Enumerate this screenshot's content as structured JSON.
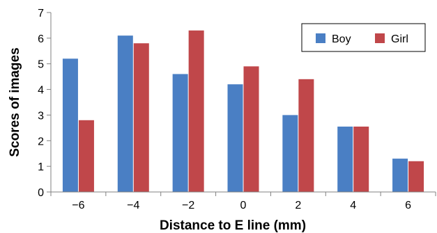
{
  "chart_data": {
    "type": "bar",
    "categories": [
      "−6",
      "−4",
      "−2",
      "0",
      "2",
      "4",
      "6"
    ],
    "series": [
      {
        "name": "Boy",
        "values": [
          5.2,
          6.1,
          4.6,
          4.2,
          3.0,
          2.55,
          1.3
        ],
        "color": "#4a7fc4"
      },
      {
        "name": "Girl",
        "values": [
          2.8,
          5.8,
          6.3,
          4.9,
          4.4,
          2.55,
          1.2
        ],
        "color": "#c0474a"
      }
    ],
    "title": "",
    "xlabel": "Distance to E line (mm)",
    "ylabel": "Scores of images",
    "ylim": [
      0,
      7
    ],
    "yticks": [
      "0",
      "1",
      "2",
      "3",
      "4",
      "5",
      "6",
      "7"
    ],
    "grid": false,
    "legend_position": "top-right"
  }
}
